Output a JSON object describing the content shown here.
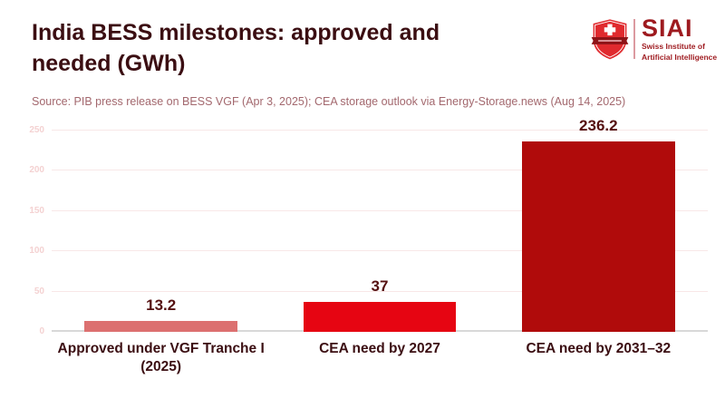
{
  "header": {
    "title_line1": "India BESS milestones: approved and",
    "title_line2": "needed (GWh)",
    "source": "Source: PIB press release on BESS VGF (Apr 3, 2025); CEA storage outlook via Energy-Storage.news (Aug 14, 2025)"
  },
  "logo": {
    "brand": "SIAI",
    "subtitle": [
      "Swiss Institute of",
      "Artificial Intelligence"
    ],
    "shield_icon": "swiss-shield-icon",
    "brand_color": "#9e1a1f"
  },
  "chart_data": {
    "type": "bar",
    "title": "India BESS milestones: approved and needed (GWh)",
    "unit": "GWh",
    "categories": [
      "Approved under VGF Tranche I (2025)",
      "CEA need by 2027",
      "CEA need by 2031–32"
    ],
    "values": [
      13.2,
      37,
      236.2
    ],
    "value_labels": [
      "13.2",
      "37",
      "236.2"
    ],
    "bar_colors": [
      "#dc7070",
      "#e60512",
      "#b00b0b"
    ],
    "ylim": [
      0,
      250
    ],
    "yticks": [
      0,
      50,
      100,
      150,
      200,
      250
    ],
    "grid": true,
    "legend": false,
    "gridline_color": "#f8e7e7",
    "axis_line_color": "#d8d8d8",
    "value_label_color": "#551010",
    "category_label_color": "#3b0e12",
    "ytick_label_color": "#f4d2d2"
  }
}
